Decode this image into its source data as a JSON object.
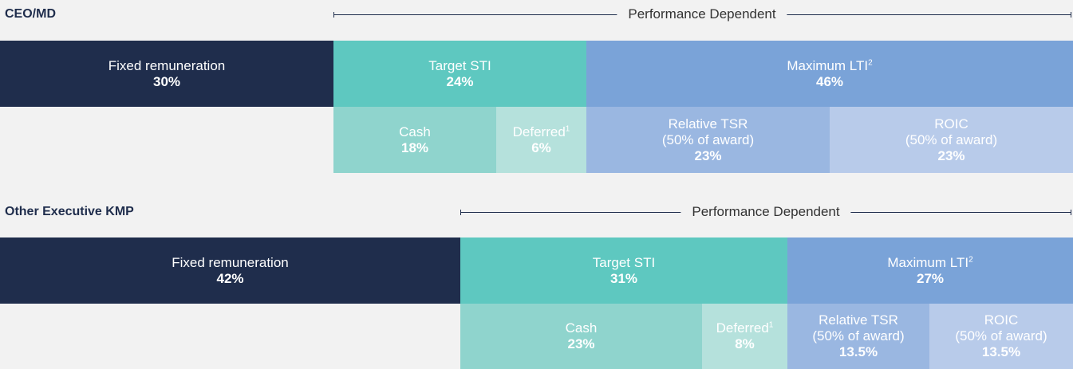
{
  "sections": [
    {
      "title": "CEO/MD",
      "performance_label": "Performance Dependent",
      "rows": [
        [
          {
            "label": "Fixed remuneration",
            "pct": "30%"
          },
          {
            "label": "Target STI",
            "pct": "24%"
          },
          {
            "label": "Maximum LTI",
            "sup": "2",
            "pct": "46%"
          }
        ],
        [
          {
            "label": "Cash",
            "pct": "18%"
          },
          {
            "label": "Deferred",
            "sup": "1",
            "pct": "6%"
          },
          {
            "label": "Relative TSR",
            "note": "(50% of award)",
            "pct": "23%"
          },
          {
            "label": "ROIC",
            "note": "(50% of award)",
            "pct": "23%"
          }
        ]
      ]
    },
    {
      "title": "Other Executive KMP",
      "performance_label": "Performance Dependent",
      "rows": [
        [
          {
            "label": "Fixed remuneration",
            "pct": "42%"
          },
          {
            "label": "Target STI",
            "pct": "31%"
          },
          {
            "label": "Maximum LTI",
            "sup": "2",
            "pct": "27%"
          }
        ],
        [
          {
            "label": "Cash",
            "pct": "23%"
          },
          {
            "label": "Deferred",
            "sup": "1",
            "pct": "8%"
          },
          {
            "label": "Relative TSR",
            "note": "(50% of award)",
            "pct": "13.5%"
          },
          {
            "label": "ROIC",
            "note": "(50% of award)",
            "pct": "13.5%"
          }
        ]
      ]
    }
  ]
}
